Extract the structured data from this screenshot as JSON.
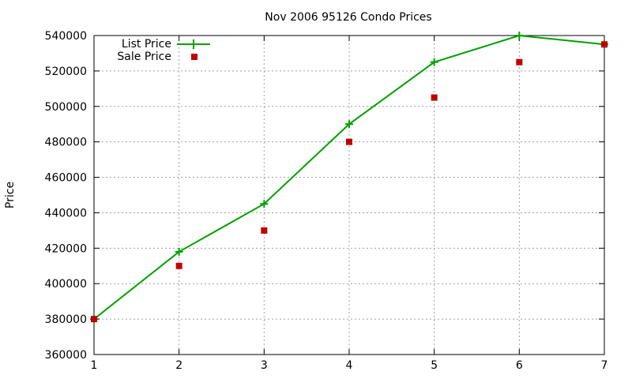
{
  "chart_data": {
    "type": "line",
    "title": "Nov 2006 95126 Condo Prices",
    "xlabel": "",
    "ylabel": "Price",
    "x": [
      1,
      2,
      3,
      4,
      5,
      6,
      7
    ],
    "xlim": [
      1,
      7
    ],
    "ylim": [
      360000,
      540000
    ],
    "xticks": [
      1,
      2,
      3,
      4,
      5,
      6,
      7
    ],
    "yticks": [
      360000,
      380000,
      400000,
      420000,
      440000,
      460000,
      480000,
      500000,
      520000,
      540000
    ],
    "grid": true,
    "legend_position": "top-left",
    "series": [
      {
        "name": "List Price",
        "style": "line+cross",
        "color": "#00a000",
        "values": [
          380000,
          418000,
          445000,
          490000,
          525000,
          540000,
          535000
        ]
      },
      {
        "name": "Sale Price",
        "style": "square-points",
        "color": "#c00000",
        "values": [
          380000,
          410000,
          430000,
          480000,
          505000,
          525000,
          535000
        ]
      }
    ]
  }
}
